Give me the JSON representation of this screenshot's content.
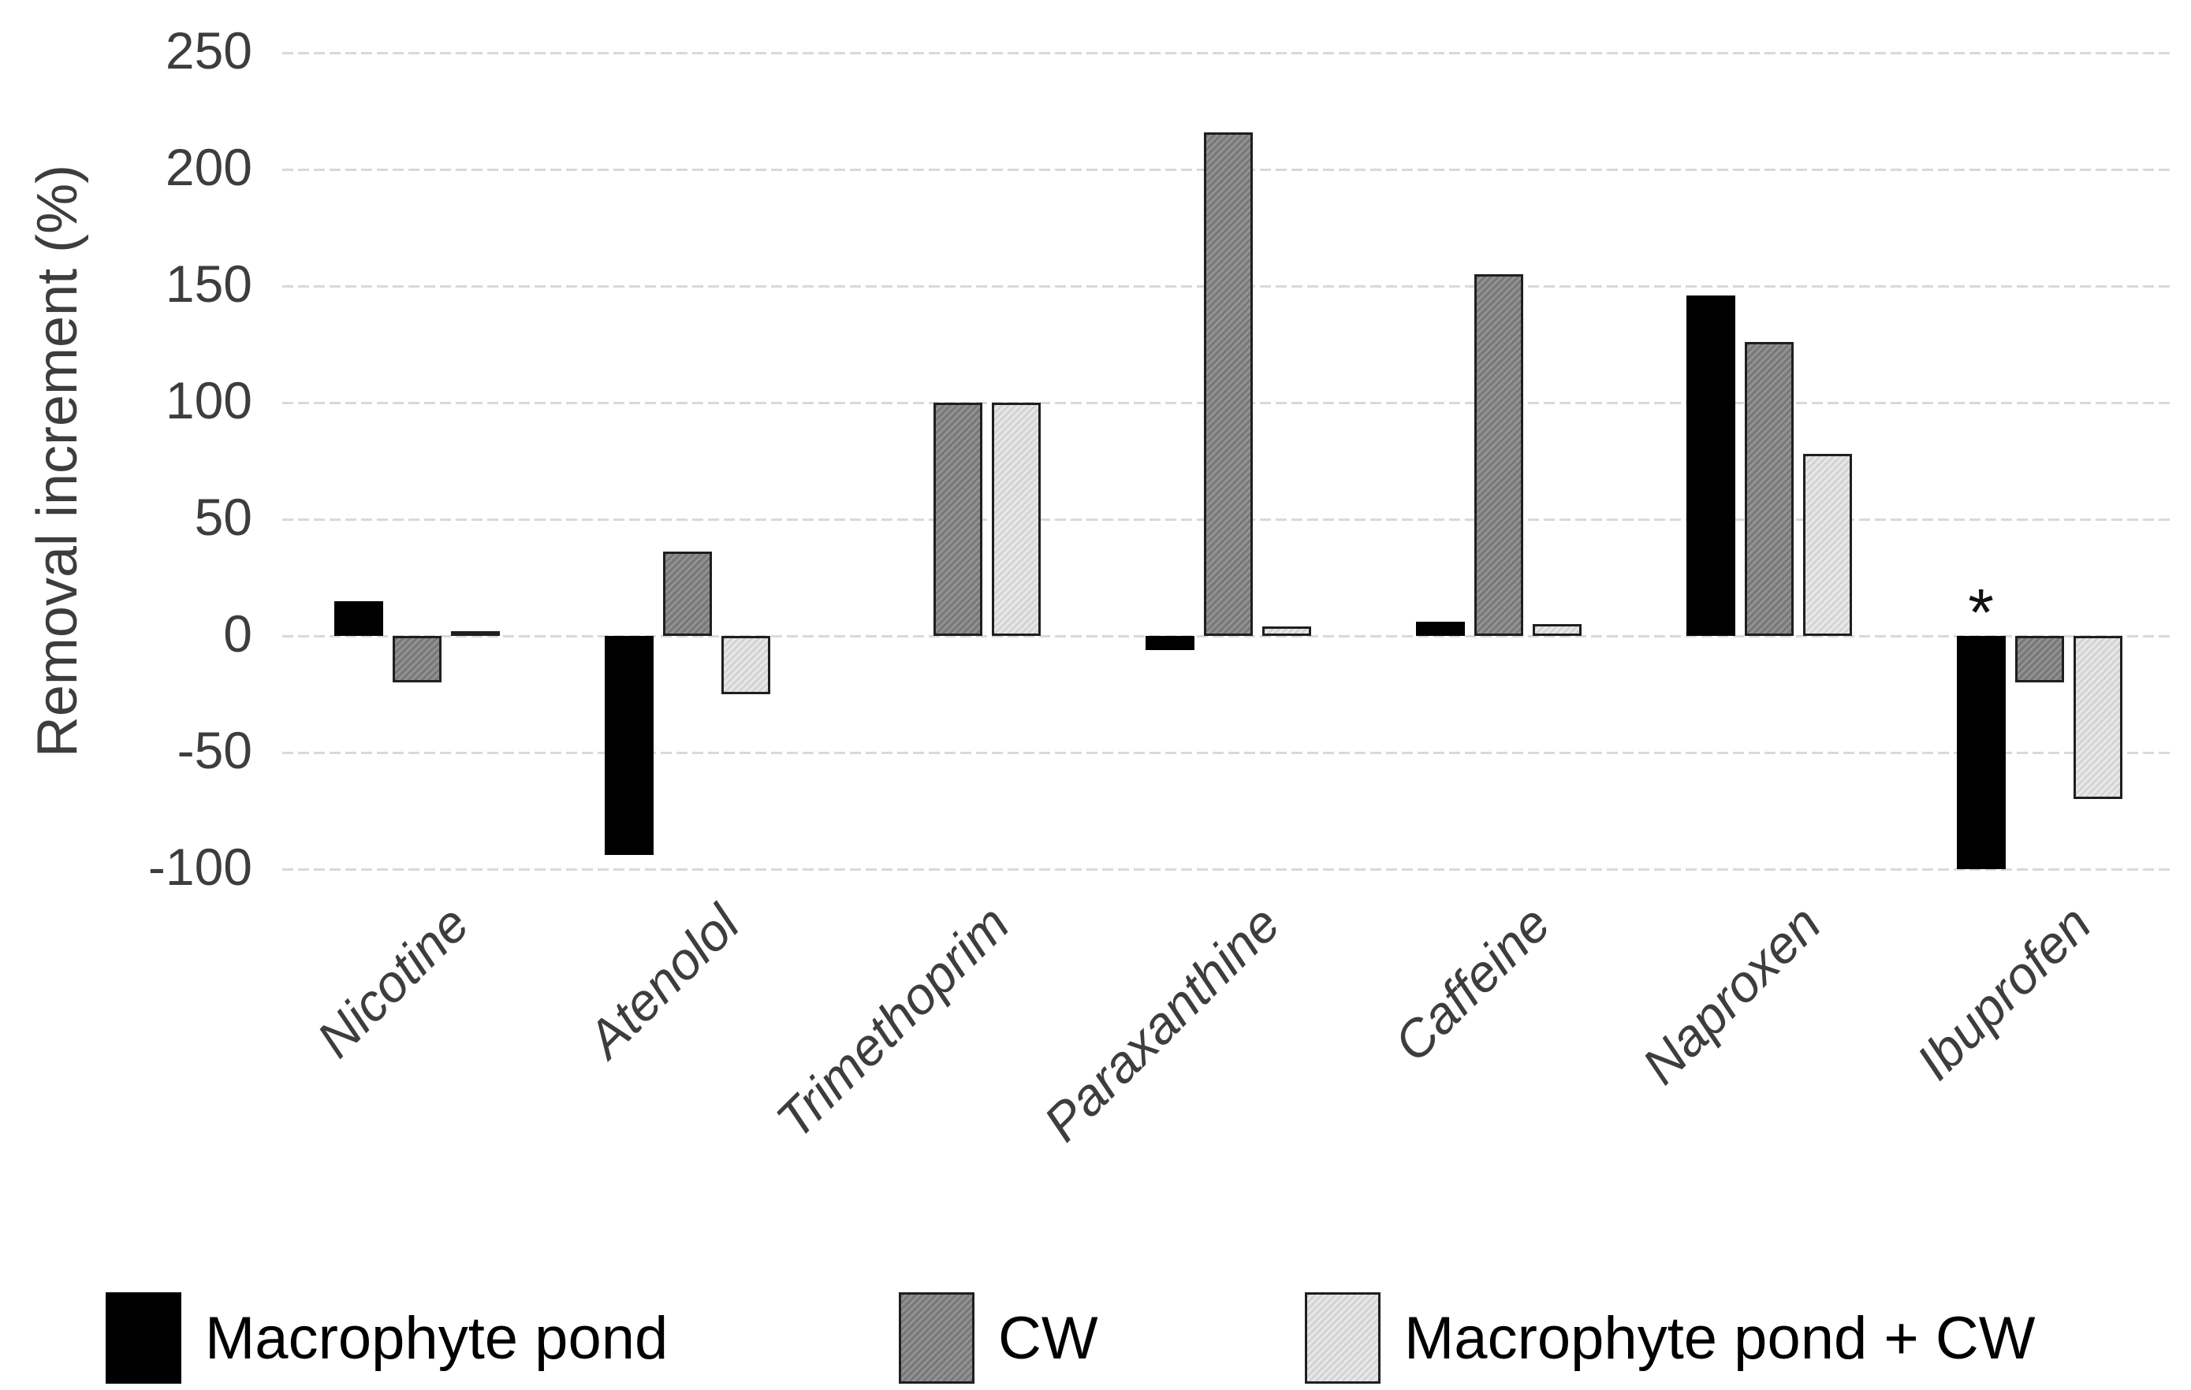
{
  "chart_data": {
    "type": "bar",
    "title": "",
    "xlabel": "",
    "ylabel": "Removal increment (%)",
    "ylim": [
      -100,
      250
    ],
    "yticks": [
      250,
      200,
      150,
      100,
      50,
      0,
      -50,
      -100
    ],
    "grid": true,
    "legend_position": "bottom",
    "categories": [
      "Nicotine",
      "Atenolol",
      "Trimethoprim",
      "Paraxanthine",
      "Caffeine",
      "Naproxen",
      "Ibuprofen"
    ],
    "series": [
      {
        "name": "Macrophyte pond",
        "color": "#000000",
        "values": [
          15,
          -94,
          0,
          -6,
          6,
          146,
          -100
        ]
      },
      {
        "name": "CW",
        "color": "#868686",
        "values": [
          -20,
          36,
          100,
          216,
          155,
          126,
          -20
        ]
      },
      {
        "name": "Macrophyte pond + CW",
        "color": "#dcdcdc",
        "values": [
          2,
          -25,
          100,
          4,
          5,
          78,
          -70
        ]
      }
    ],
    "annotations": [
      {
        "text": "*",
        "category": "Ibuprofen",
        "series": "Macrophyte pond"
      }
    ]
  }
}
